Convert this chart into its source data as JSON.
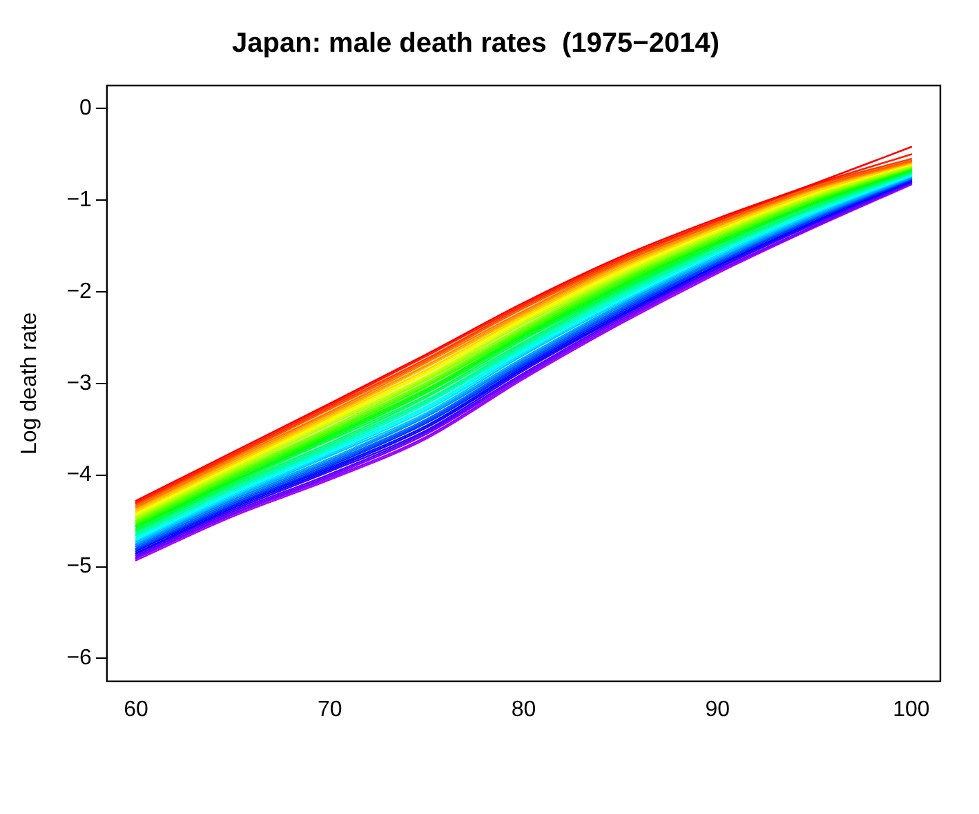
{
  "chart_data": {
    "type": "line",
    "title": "Japan: male death rates  (1975−2014)",
    "ylabel": "Log death rate",
    "x": [
      60,
      65,
      70,
      75,
      80,
      85,
      90,
      95,
      100
    ],
    "xlim": [
      58.5,
      101.5
    ],
    "xticks": [
      60,
      70,
      80,
      90,
      100
    ],
    "ylim": [
      -6.25,
      0.25
    ],
    "yticks": [
      -6,
      -5,
      -4,
      -3,
      -2,
      -1,
      0
    ],
    "grid": false,
    "legend": false,
    "marker": "none",
    "line_style": "solid",
    "series": [
      {
        "color": "#ff0000",
        "values": [
          -4.28,
          -3.75,
          -3.22,
          -2.68,
          -2.12,
          -1.62,
          -1.2,
          -0.82,
          -0.42
        ]
      },
      {
        "color": "#ff1f00",
        "values": [
          -4.3,
          -3.77,
          -3.24,
          -2.7,
          -2.14,
          -1.64,
          -1.22,
          -0.83,
          -0.5
        ]
      },
      {
        "color": "#ff3d00",
        "values": [
          -4.31,
          -3.79,
          -3.26,
          -2.73,
          -2.16,
          -1.66,
          -1.23,
          -0.84,
          -0.55
        ]
      },
      {
        "color": "#ff5c00",
        "values": [
          -4.33,
          -3.8,
          -3.28,
          -2.75,
          -2.18,
          -1.68,
          -1.25,
          -0.86,
          -0.57
        ]
      },
      {
        "color": "#ff7a00",
        "values": [
          -4.35,
          -3.82,
          -3.31,
          -2.77,
          -2.21,
          -1.69,
          -1.26,
          -0.87,
          -0.58
        ]
      },
      {
        "color": "#ff9900",
        "values": [
          -4.36,
          -3.84,
          -3.33,
          -2.8,
          -2.23,
          -1.71,
          -1.28,
          -0.88,
          -0.59
        ]
      },
      {
        "color": "#ffb700",
        "values": [
          -4.38,
          -3.86,
          -3.35,
          -2.82,
          -2.25,
          -1.73,
          -1.29,
          -0.89,
          -0.59
        ]
      },
      {
        "color": "#ffd600",
        "values": [
          -4.4,
          -3.88,
          -3.37,
          -2.85,
          -2.27,
          -1.75,
          -1.31,
          -0.91,
          -0.6
        ]
      },
      {
        "color": "#fff400",
        "values": [
          -4.41,
          -3.89,
          -3.39,
          -2.87,
          -2.29,
          -1.77,
          -1.32,
          -0.92,
          -0.61
        ]
      },
      {
        "color": "#ebff00",
        "values": [
          -4.43,
          -3.91,
          -3.41,
          -2.89,
          -2.31,
          -1.79,
          -1.34,
          -0.93,
          -0.61
        ]
      },
      {
        "color": "#cdff00",
        "values": [
          -4.45,
          -3.93,
          -3.43,
          -2.92,
          -2.33,
          -1.81,
          -1.35,
          -0.94,
          -0.62
        ]
      },
      {
        "color": "#aeff00",
        "values": [
          -4.46,
          -3.95,
          -3.45,
          -2.94,
          -2.35,
          -1.83,
          -1.37,
          -0.96,
          -0.63
        ]
      },
      {
        "color": "#90ff00",
        "values": [
          -4.48,
          -3.97,
          -3.48,
          -2.96,
          -2.38,
          -1.84,
          -1.38,
          -0.97,
          -0.64
        ]
      },
      {
        "color": "#71ff00",
        "values": [
          -4.5,
          -3.98,
          -3.5,
          -2.99,
          -2.4,
          -1.86,
          -1.4,
          -0.98,
          -0.64
        ]
      },
      {
        "color": "#53ff00",
        "values": [
          -4.51,
          -4.0,
          -3.52,
          -3.01,
          -2.42,
          -1.88,
          -1.42,
          -0.99,
          -0.65
        ]
      },
      {
        "color": "#34ff00",
        "values": [
          -4.53,
          -4.02,
          -3.54,
          -3.03,
          -2.44,
          -1.9,
          -1.43,
          -1.0,
          -0.66
        ]
      },
      {
        "color": "#16ff00",
        "values": [
          -4.55,
          -4.04,
          -3.56,
          -3.06,
          -2.46,
          -1.92,
          -1.45,
          -1.02,
          -0.66
        ]
      },
      {
        "color": "#00ff09",
        "values": [
          -4.56,
          -4.06,
          -3.58,
          -3.08,
          -2.48,
          -1.94,
          -1.46,
          -1.03,
          -0.67
        ]
      },
      {
        "color": "#00ff27",
        "values": [
          -4.58,
          -4.07,
          -3.6,
          -3.1,
          -2.5,
          -1.96,
          -1.48,
          -1.04,
          -0.68
        ]
      },
      {
        "color": "#00ff46",
        "values": [
          -4.6,
          -4.09,
          -3.62,
          -3.13,
          -2.52,
          -1.98,
          -1.49,
          -1.05,
          -0.69
        ]
      },
      {
        "color": "#00ff64",
        "values": [
          -4.61,
          -4.11,
          -3.65,
          -3.15,
          -2.55,
          -1.99,
          -1.51,
          -1.07,
          -0.69
        ]
      },
      {
        "color": "#00ff83",
        "values": [
          -4.63,
          -4.13,
          -3.67,
          -3.18,
          -2.57,
          -2.01,
          -1.52,
          -1.08,
          -0.7
        ]
      },
      {
        "color": "#00ffa1",
        "values": [
          -4.65,
          -4.15,
          -3.69,
          -3.2,
          -2.59,
          -2.03,
          -1.54,
          -1.09,
          -0.71
        ]
      },
      {
        "color": "#00ffc0",
        "values": [
          -4.66,
          -4.16,
          -3.71,
          -3.22,
          -2.61,
          -2.05,
          -1.55,
          -1.1,
          -0.71
        ]
      },
      {
        "color": "#00ffde",
        "values": [
          -4.68,
          -4.18,
          -3.73,
          -3.25,
          -2.63,
          -2.07,
          -1.57,
          -1.12,
          -0.72
        ]
      },
      {
        "color": "#00fffd",
        "values": [
          -4.7,
          -4.2,
          -3.75,
          -3.27,
          -2.65,
          -2.09,
          -1.58,
          -1.13,
          -0.73
        ]
      },
      {
        "color": "#00e2ff",
        "values": [
          -4.71,
          -4.22,
          -3.77,
          -3.29,
          -2.67,
          -2.11,
          -1.6,
          -1.14,
          -0.74
        ]
      },
      {
        "color": "#00c4ff",
        "values": [
          -4.73,
          -4.24,
          -3.79,
          -3.32,
          -2.69,
          -2.12,
          -1.62,
          -1.15,
          -0.74
        ]
      },
      {
        "color": "#00a6ff",
        "values": [
          -4.75,
          -4.25,
          -3.82,
          -3.34,
          -2.72,
          -2.14,
          -1.63,
          -1.17,
          -0.75
        ]
      },
      {
        "color": "#0087ff",
        "values": [
          -4.76,
          -4.27,
          -3.84,
          -3.36,
          -2.74,
          -2.16,
          -1.65,
          -1.18,
          -0.76
        ]
      },
      {
        "color": "#0068ff",
        "values": [
          -4.78,
          -4.29,
          -3.86,
          -3.39,
          -2.76,
          -2.18,
          -1.66,
          -1.19,
          -0.76
        ]
      },
      {
        "color": "#004aff",
        "values": [
          -4.8,
          -4.31,
          -3.88,
          -3.41,
          -2.78,
          -2.2,
          -1.68,
          -1.2,
          -0.77
        ]
      },
      {
        "color": "#002cff",
        "values": [
          -4.81,
          -4.33,
          -3.9,
          -3.43,
          -2.8,
          -2.22,
          -1.69,
          -1.21,
          -0.78
        ]
      },
      {
        "color": "#000dff",
        "values": [
          -4.83,
          -4.34,
          -3.92,
          -3.46,
          -2.82,
          -2.24,
          -1.71,
          -1.23,
          -0.79
        ]
      },
      {
        "color": "#1100ff",
        "values": [
          -4.85,
          -4.36,
          -3.94,
          -3.48,
          -2.84,
          -2.26,
          -1.72,
          -1.24,
          -0.79
        ]
      },
      {
        "color": "#3000ff",
        "values": [
          -4.86,
          -4.38,
          -3.96,
          -3.51,
          -2.86,
          -2.27,
          -1.74,
          -1.25,
          -0.8
        ]
      },
      {
        "color": "#4f00ff",
        "values": [
          -4.88,
          -4.4,
          -3.99,
          -3.53,
          -2.89,
          -2.29,
          -1.75,
          -1.26,
          -0.81
        ]
      },
      {
        "color": "#6d00ff",
        "values": [
          -4.9,
          -4.42,
          -4.01,
          -3.55,
          -2.91,
          -2.31,
          -1.77,
          -1.28,
          -0.81
        ]
      },
      {
        "color": "#8b00ff",
        "values": [
          -4.91,
          -4.43,
          -4.03,
          -3.58,
          -2.93,
          -2.33,
          -1.78,
          -1.29,
          -0.82
        ]
      },
      {
        "color": "#aa00ff",
        "values": [
          -4.93,
          -4.45,
          -4.05,
          -3.6,
          -2.95,
          -2.35,
          -1.8,
          -1.3,
          -0.83
        ]
      }
    ]
  }
}
